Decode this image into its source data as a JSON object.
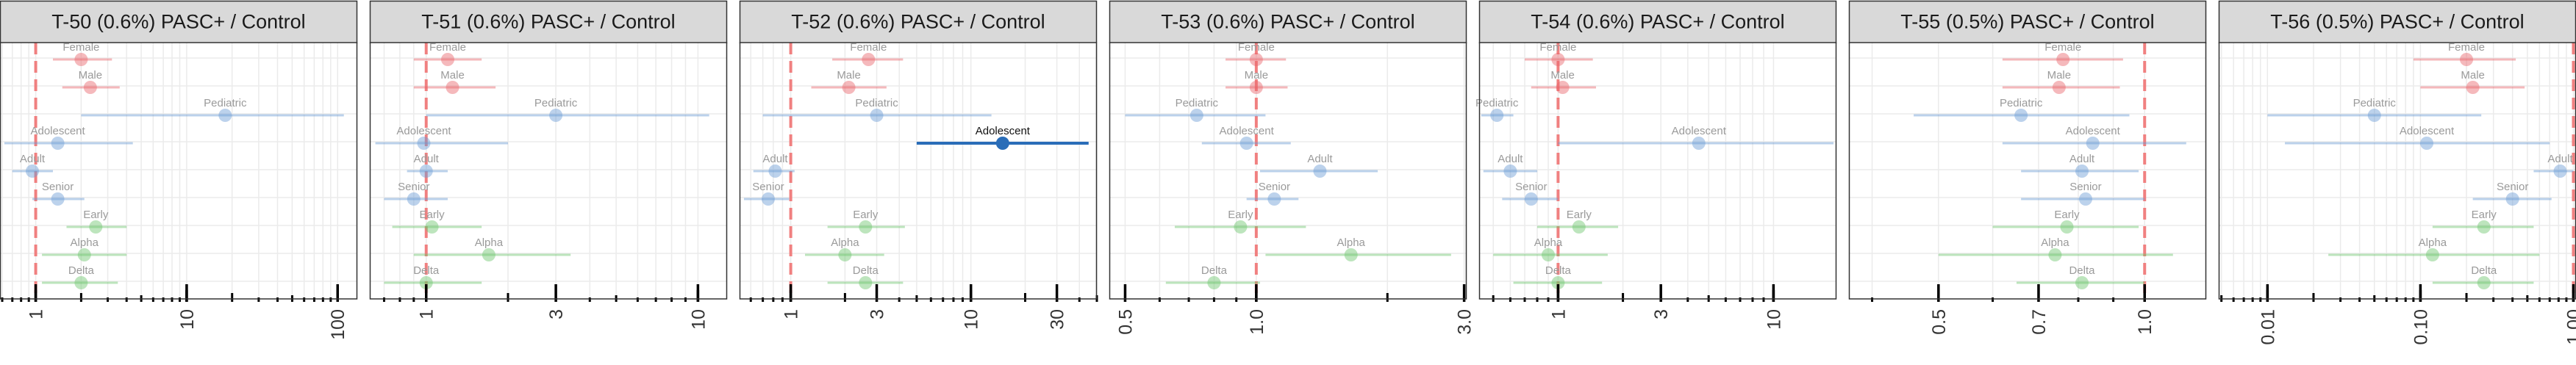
{
  "colors": {
    "sex": "#E8636A",
    "age": "#6A9BD4",
    "variant": "#6CC56C",
    "highlight": "#2A6DB8",
    "reference": "#F08080",
    "strip_bg": "#D9D9D9",
    "grid": "#EBEBEB"
  },
  "row_labels": [
    "Female",
    "Male",
    "Pediatric",
    "Adolescent",
    "Adult",
    "Senior",
    "Early",
    "Alpha",
    "Delta"
  ],
  "row_groups": [
    "sex",
    "sex",
    "age",
    "age",
    "age",
    "age",
    "variant",
    "variant",
    "variant"
  ],
  "chart_data": [
    {
      "type": "forest",
      "title": "T-50 (0.6%) PASC+ / Control",
      "scale": "log10",
      "xlim": [
        0.58,
        135
      ],
      "x_ticks": [
        1,
        10,
        100
      ],
      "x_tick_labels": [
        "1",
        "10",
        "100"
      ],
      "reference_line": 1,
      "points": [
        {
          "label": "Female",
          "estimate": 2.0,
          "lower": 1.3,
          "upper": 3.2,
          "significant": false
        },
        {
          "label": "Male",
          "estimate": 2.3,
          "lower": 1.5,
          "upper": 3.6,
          "significant": false
        },
        {
          "label": "Pediatric",
          "estimate": 18,
          "lower": 2.0,
          "upper": 110,
          "significant": false
        },
        {
          "label": "Adolescent",
          "estimate": 1.4,
          "lower": 0.62,
          "upper": 4.4,
          "significant": false
        },
        {
          "label": "Adult",
          "estimate": 0.95,
          "lower": 0.7,
          "upper": 1.3,
          "significant": false
        },
        {
          "label": "Senior",
          "estimate": 1.4,
          "lower": 0.95,
          "upper": 2.1,
          "significant": false
        },
        {
          "label": "Early",
          "estimate": 2.5,
          "lower": 1.6,
          "upper": 4.0,
          "significant": false
        },
        {
          "label": "Alpha",
          "estimate": 2.1,
          "lower": 1.1,
          "upper": 4.0,
          "significant": false
        },
        {
          "label": "Delta",
          "estimate": 2.0,
          "lower": 1.1,
          "upper": 3.5,
          "significant": false
        }
      ]
    },
    {
      "type": "forest",
      "title": "T-51 (0.6%) PASC+ / Control",
      "scale": "log10",
      "xlim": [
        0.62,
        12.8
      ],
      "x_ticks": [
        1,
        3,
        10
      ],
      "x_tick_labels": [
        "1",
        "3",
        "10"
      ],
      "reference_line": 1,
      "points": [
        {
          "label": "Female",
          "estimate": 1.2,
          "lower": 0.9,
          "upper": 1.6,
          "significant": false
        },
        {
          "label": "Male",
          "estimate": 1.25,
          "lower": 0.9,
          "upper": 1.8,
          "significant": false
        },
        {
          "label": "Pediatric",
          "estimate": 3.0,
          "lower": 1.0,
          "upper": 11.0,
          "significant": false
        },
        {
          "label": "Adolescent",
          "estimate": 0.98,
          "lower": 0.65,
          "upper": 2.0,
          "significant": false
        },
        {
          "label": "Adult",
          "estimate": 1.0,
          "lower": 0.85,
          "upper": 1.2,
          "significant": false
        },
        {
          "label": "Senior",
          "estimate": 0.9,
          "lower": 0.7,
          "upper": 1.2,
          "significant": false
        },
        {
          "label": "Early",
          "estimate": 1.05,
          "lower": 0.75,
          "upper": 1.6,
          "significant": false
        },
        {
          "label": "Alpha",
          "estimate": 1.7,
          "lower": 0.9,
          "upper": 3.4,
          "significant": false
        },
        {
          "label": "Delta",
          "estimate": 1.0,
          "lower": 0.7,
          "upper": 1.6,
          "significant": false
        }
      ]
    },
    {
      "type": "forest",
      "title": "T-52 (0.6%) PASC+ / Control",
      "scale": "log10",
      "xlim": [
        0.52,
        50
      ],
      "x_ticks": [
        1,
        3,
        10,
        30
      ],
      "x_tick_labels": [
        "1",
        "3",
        "10",
        "30"
      ],
      "reference_line": 1,
      "points": [
        {
          "label": "Female",
          "estimate": 2.7,
          "lower": 1.7,
          "upper": 4.2,
          "significant": false
        },
        {
          "label": "Male",
          "estimate": 2.1,
          "lower": 1.3,
          "upper": 3.4,
          "significant": false
        },
        {
          "label": "Pediatric",
          "estimate": 3.0,
          "lower": 0.7,
          "upper": 13.0,
          "significant": false
        },
        {
          "label": "Adolescent",
          "estimate": 15,
          "lower": 5.0,
          "upper": 45,
          "significant": true
        },
        {
          "label": "Adult",
          "estimate": 0.82,
          "lower": 0.62,
          "upper": 1.05,
          "significant": false
        },
        {
          "label": "Senior",
          "estimate": 0.75,
          "lower": 0.55,
          "upper": 0.98,
          "significant": false
        },
        {
          "label": "Early",
          "estimate": 2.6,
          "lower": 1.6,
          "upper": 4.3,
          "significant": false
        },
        {
          "label": "Alpha",
          "estimate": 2.0,
          "lower": 1.2,
          "upper": 3.3,
          "significant": false
        },
        {
          "label": "Delta",
          "estimate": 2.6,
          "lower": 1.6,
          "upper": 4.2,
          "significant": false
        }
      ]
    },
    {
      "type": "forest",
      "title": "T-53 (0.6%) PASC+ / Control",
      "scale": "log10",
      "xlim": [
        0.46,
        3.04
      ],
      "x_ticks": [
        0.5,
        1.0,
        3.0
      ],
      "x_tick_labels": [
        "0.5",
        "1.0",
        "3.0"
      ],
      "reference_line": 1,
      "points": [
        {
          "label": "Female",
          "estimate": 1.0,
          "lower": 0.85,
          "upper": 1.17,
          "significant": false
        },
        {
          "label": "Male",
          "estimate": 1.0,
          "lower": 0.85,
          "upper": 1.18,
          "significant": false
        },
        {
          "label": "Pediatric",
          "estimate": 0.73,
          "lower": 0.5,
          "upper": 1.05,
          "significant": false
        },
        {
          "label": "Adolescent",
          "estimate": 0.95,
          "lower": 0.75,
          "upper": 1.2,
          "significant": false
        },
        {
          "label": "Adult",
          "estimate": 1.4,
          "lower": 1.02,
          "upper": 1.9,
          "significant": false
        },
        {
          "label": "Senior",
          "estimate": 1.1,
          "lower": 0.95,
          "upper": 1.25,
          "significant": false
        },
        {
          "label": "Early",
          "estimate": 0.92,
          "lower": 0.65,
          "upper": 1.3,
          "significant": false
        },
        {
          "label": "Alpha",
          "estimate": 1.65,
          "lower": 1.05,
          "upper": 2.8,
          "significant": false
        },
        {
          "label": "Delta",
          "estimate": 0.8,
          "lower": 0.62,
          "upper": 1.02,
          "significant": false
        }
      ]
    },
    {
      "type": "forest",
      "title": "T-54 (0.6%) PASC+ / Control",
      "scale": "log10",
      "xlim": [
        0.43,
        19.6
      ],
      "x_ticks": [
        1,
        3,
        10
      ],
      "x_tick_labels": [
        "1",
        "3",
        "10"
      ],
      "reference_line": 1,
      "points": [
        {
          "label": "Female",
          "estimate": 1.0,
          "lower": 0.7,
          "upper": 1.45,
          "significant": false
        },
        {
          "label": "Male",
          "estimate": 1.05,
          "lower": 0.75,
          "upper": 1.5,
          "significant": false
        },
        {
          "label": "Pediatric",
          "estimate": 0.52,
          "lower": 0.44,
          "upper": 0.62,
          "significant": false
        },
        {
          "label": "Adolescent",
          "estimate": 4.5,
          "lower": 1.0,
          "upper": 19.0,
          "significant": false
        },
        {
          "label": "Adult",
          "estimate": 0.6,
          "lower": 0.45,
          "upper": 0.8,
          "significant": false
        },
        {
          "label": "Senior",
          "estimate": 0.75,
          "lower": 0.55,
          "upper": 1.0,
          "significant": false
        },
        {
          "label": "Early",
          "estimate": 1.25,
          "lower": 0.8,
          "upper": 1.9,
          "significant": false
        },
        {
          "label": "Alpha",
          "estimate": 0.9,
          "lower": 0.5,
          "upper": 1.7,
          "significant": false
        },
        {
          "label": "Delta",
          "estimate": 1.0,
          "lower": 0.62,
          "upper": 1.6,
          "significant": false
        }
      ]
    },
    {
      "type": "forest",
      "title": "T-55 (0.5%) PASC+ / Control",
      "scale": "log10",
      "xlim": [
        0.37,
        1.23
      ],
      "x_ticks": [
        0.5,
        0.7,
        1.0
      ],
      "x_tick_labels": [
        "0.5",
        "0.7",
        "1.0"
      ],
      "reference_line": 1,
      "points": [
        {
          "label": "Female",
          "estimate": 0.76,
          "lower": 0.62,
          "upper": 0.93,
          "significant": false
        },
        {
          "label": "Male",
          "estimate": 0.75,
          "lower": 0.62,
          "upper": 0.92,
          "significant": false
        },
        {
          "label": "Pediatric",
          "estimate": 0.66,
          "lower": 0.46,
          "upper": 0.95,
          "significant": false
        },
        {
          "label": "Adolescent",
          "estimate": 0.84,
          "lower": 0.62,
          "upper": 1.15,
          "significant": false
        },
        {
          "label": "Adult",
          "estimate": 0.81,
          "lower": 0.66,
          "upper": 0.98,
          "significant": false
        },
        {
          "label": "Senior",
          "estimate": 0.82,
          "lower": 0.66,
          "upper": 1.0,
          "significant": false
        },
        {
          "label": "Early",
          "estimate": 0.77,
          "lower": 0.6,
          "upper": 0.98,
          "significant": false
        },
        {
          "label": "Alpha",
          "estimate": 0.74,
          "lower": 0.5,
          "upper": 1.1,
          "significant": false
        },
        {
          "label": "Delta",
          "estimate": 0.81,
          "lower": 0.65,
          "upper": 1.0,
          "significant": false
        }
      ]
    },
    {
      "type": "forest",
      "title": "T-56 (0.5%) PASC+ / Control",
      "scale": "log10",
      "xlim": [
        0.0048,
        1.04
      ],
      "x_ticks": [
        0.01,
        0.1,
        1.0
      ],
      "x_tick_labels": [
        "0.01",
        "0.10",
        "1.00"
      ],
      "reference_line": 1,
      "points": [
        {
          "label": "Female",
          "estimate": 0.2,
          "lower": 0.09,
          "upper": 0.42,
          "significant": false
        },
        {
          "label": "Male",
          "estimate": 0.22,
          "lower": 0.1,
          "upper": 0.48,
          "significant": false
        },
        {
          "label": "Pediatric",
          "estimate": 0.05,
          "lower": 0.01,
          "upper": 0.25,
          "significant": false
        },
        {
          "label": "Adolescent",
          "estimate": 0.11,
          "lower": 0.013,
          "upper": 0.7,
          "significant": false
        },
        {
          "label": "Adult",
          "estimate": 0.82,
          "lower": 0.55,
          "upper": 1.0,
          "significant": false
        },
        {
          "label": "Senior",
          "estimate": 0.4,
          "lower": 0.22,
          "upper": 0.72,
          "significant": false
        },
        {
          "label": "Early",
          "estimate": 0.26,
          "lower": 0.12,
          "upper": 0.55,
          "significant": false
        },
        {
          "label": "Alpha",
          "estimate": 0.12,
          "lower": 0.025,
          "upper": 0.6,
          "significant": false
        },
        {
          "label": "Delta",
          "estimate": 0.26,
          "lower": 0.12,
          "upper": 0.55,
          "significant": false
        }
      ]
    }
  ]
}
